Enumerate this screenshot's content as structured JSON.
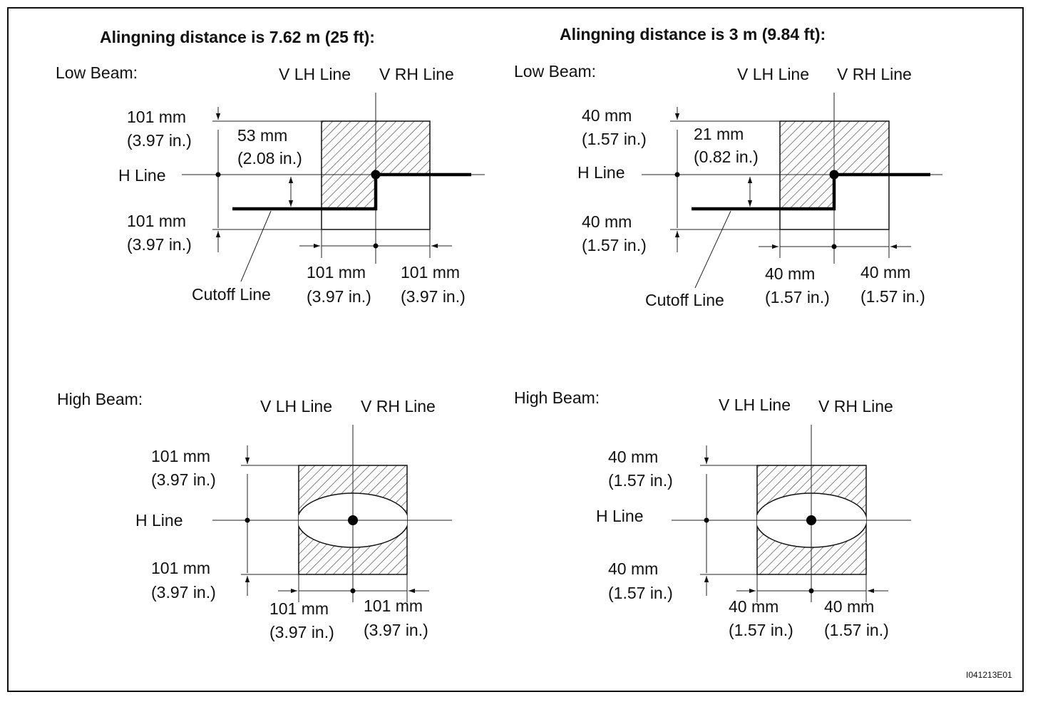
{
  "titles": {
    "left": "Alingning distance is 7.62 m (25 ft):",
    "right": "Alingning distance is 3 m (9.84 ft):"
  },
  "diagrams": {
    "low_left": {
      "beam": "Low Beam:",
      "vlh": "V LH Line",
      "vrh": "V RH Line",
      "hline": "H Line",
      "top_mm": "101 mm",
      "top_in": "(3.97 in.)",
      "bot_mm": "101 mm",
      "bot_in": "(3.97 in.)",
      "step_mm": "53 mm",
      "step_in": "(2.08 in.)",
      "left_mm": "101 mm",
      "left_in": "(3.97 in.)",
      "right_mm": "101 mm",
      "right_in": "(3.97 in.)",
      "cutoff": "Cutoff Line"
    },
    "low_right": {
      "beam": "Low Beam:",
      "vlh": "V LH Line",
      "vrh": "V RH Line",
      "hline": "H Line",
      "top_mm": "40 mm",
      "top_in": "(1.57 in.)",
      "bot_mm": "40 mm",
      "bot_in": "(1.57 in.)",
      "step_mm": "21 mm",
      "step_in": "(0.82 in.)",
      "left_mm": "40 mm",
      "left_in": "(1.57 in.)",
      "right_mm": "40 mm",
      "right_in": "(1.57 in.)",
      "cutoff": "Cutoff Line"
    },
    "high_left": {
      "beam": "High Beam:",
      "vlh": "V LH Line",
      "vrh": "V RH Line",
      "hline": "H Line",
      "top_mm": "101 mm",
      "top_in": "(3.97 in.)",
      "bot_mm": "101 mm",
      "bot_in": "(3.97 in.)",
      "left_mm": "101 mm",
      "left_in": "(3.97 in.)",
      "right_mm": "101 mm",
      "right_in": "(3.97 in.)"
    },
    "high_right": {
      "beam": "High Beam:",
      "vlh": "V LH Line",
      "vrh": "V RH Line",
      "hline": "H Line",
      "top_mm": "40 mm",
      "top_in": "(1.57 in.)",
      "bot_mm": "40 mm",
      "bot_in": "(1.57 in.)",
      "left_mm": "40 mm",
      "left_in": "(1.57 in.)",
      "right_mm": "40 mm",
      "right_in": "(1.57 in.)"
    }
  },
  "figure_code": "I041213E01"
}
